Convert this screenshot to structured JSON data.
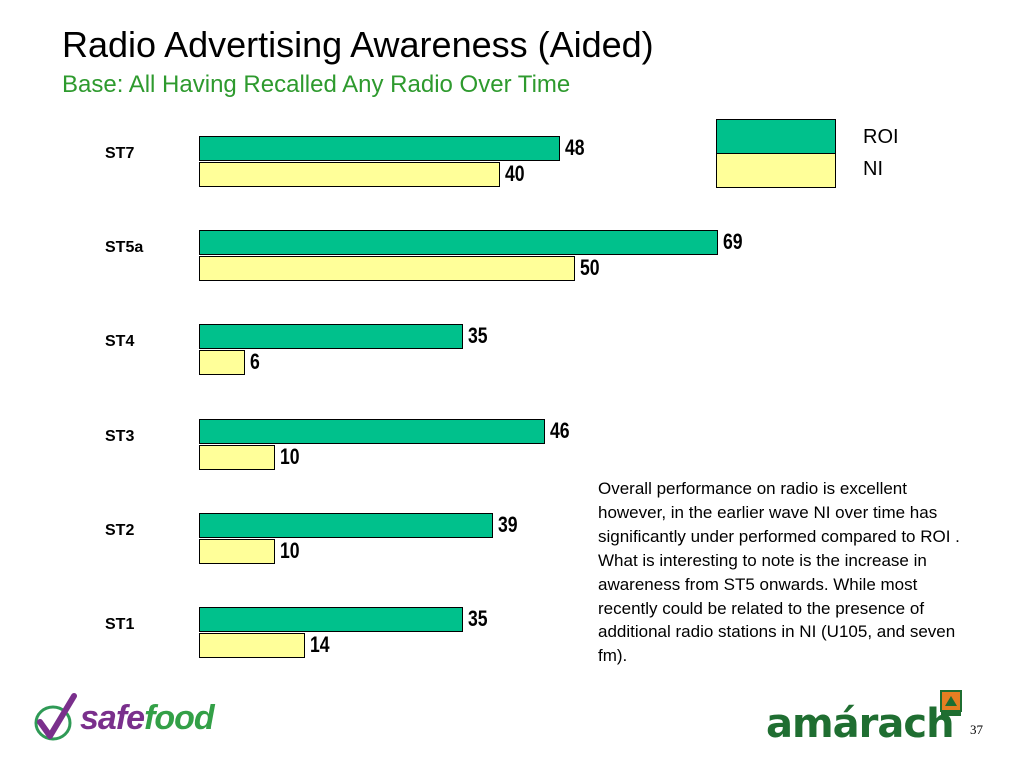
{
  "slide": {
    "title": "Radio Advertising Awareness (Aided)",
    "subtitle": "Base: All Having Recalled Any Radio Over Time",
    "note": "Overall performance on radio is excellent however, in the earlier wave NI over time has significantly under performed compared to ROI . What is interesting to note is the increase in awareness from ST5 onwards. While most recently could be related to the presence of additional radio stations in NI (U105, and seven fm).",
    "page_number": "37"
  },
  "logos": {
    "safefood_part1": "safe",
    "safefood_part2": "food",
    "amarach": "amárach"
  },
  "colors": {
    "roi": "#00c18c",
    "ni": "#ffff99",
    "subtitle": "#2e9a2e"
  },
  "chart_data": {
    "type": "bar",
    "orientation": "horizontal",
    "categories": [
      "ST7",
      "ST5a",
      "ST4",
      "ST3",
      "ST2",
      "ST1"
    ],
    "series": [
      {
        "name": "ROI",
        "values": [
          48,
          69,
          35,
          46,
          39,
          35
        ]
      },
      {
        "name": "NI",
        "values": [
          40,
          50,
          6,
          10,
          10,
          14
        ]
      }
    ],
    "legend": {
      "placement": "top-right",
      "labels": [
        "ROI",
        "NI"
      ]
    },
    "xlim": [
      0,
      100
    ],
    "grid": false,
    "data_labels": true
  }
}
